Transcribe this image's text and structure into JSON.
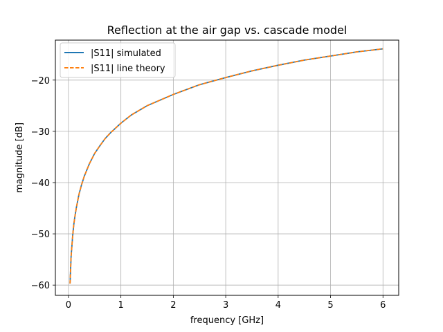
{
  "chart_data": {
    "type": "line",
    "title": "Reflection at the air gap vs. cascade model",
    "xlabel": "frequency [GHz]",
    "ylabel": "magnitude [dB]",
    "xlim": [
      -0.25,
      6.3
    ],
    "ylim": [
      -62,
      -12.2
    ],
    "x_ticks": [
      0,
      1,
      2,
      3,
      4,
      5,
      6
    ],
    "x_tick_labels": [
      "0",
      "1",
      "2",
      "3",
      "4",
      "5",
      "6"
    ],
    "y_ticks": [
      -60,
      -50,
      -40,
      -30,
      -20
    ],
    "y_tick_labels": [
      "−60",
      "−50",
      "−40",
      "−30",
      "−20"
    ],
    "grid": true,
    "legend_position": "upper-left",
    "series": [
      {
        "name": "|S11| simulated",
        "color": "#1f77b4",
        "line_style": "solid",
        "x": [
          0.03,
          0.05,
          0.08,
          0.1,
          0.12,
          0.15,
          0.2,
          0.25,
          0.3,
          0.4,
          0.5,
          0.6,
          0.7,
          0.8,
          1.0,
          1.2,
          1.5,
          2.0,
          2.5,
          3.0,
          3.5,
          4.0,
          4.5,
          5.0,
          5.5,
          6.0
        ],
        "y": [
          -59.7,
          -54.4,
          -50.4,
          -48.3,
          -46.8,
          -44.9,
          -42.3,
          -40.4,
          -38.8,
          -36.3,
          -34.3,
          -32.8,
          -31.4,
          -30.3,
          -28.4,
          -26.8,
          -25.0,
          -22.8,
          -20.9,
          -19.5,
          -18.2,
          -17.1,
          -16.1,
          -15.3,
          -14.5,
          -13.9
        ]
      },
      {
        "name": "|S11| line theory",
        "color": "#ff7f0e",
        "line_style": "dashed",
        "x": [
          0.03,
          0.05,
          0.08,
          0.1,
          0.12,
          0.15,
          0.2,
          0.25,
          0.3,
          0.4,
          0.5,
          0.6,
          0.7,
          0.8,
          1.0,
          1.2,
          1.5,
          2.0,
          2.5,
          3.0,
          3.5,
          4.0,
          4.5,
          5.0,
          5.5,
          6.0
        ],
        "y": [
          -59.7,
          -54.4,
          -50.4,
          -48.3,
          -46.8,
          -44.9,
          -42.3,
          -40.4,
          -38.8,
          -36.3,
          -34.3,
          -32.8,
          -31.4,
          -30.3,
          -28.4,
          -26.8,
          -25.0,
          -22.8,
          -20.9,
          -19.5,
          -18.2,
          -17.1,
          -16.1,
          -15.3,
          -14.5,
          -13.9
        ]
      }
    ]
  }
}
